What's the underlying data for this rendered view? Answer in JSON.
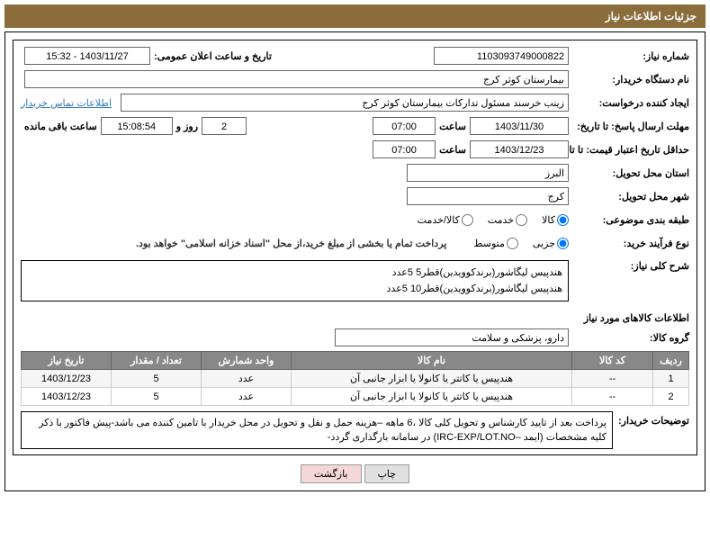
{
  "title_bar": "جزئیات اطلاعات نیاز",
  "labels": {
    "need_number": "شماره نیاز:",
    "announce_datetime": "تاریخ و ساعت اعلان عمومی:",
    "buyer_org": "نام دستگاه خریدار:",
    "requester": "ایجاد کننده درخواست:",
    "contact_link": "اطلاعات تماس خریدار",
    "reply_deadline": "مهلت ارسال پاسخ: تا تاریخ:",
    "hour": "ساعت",
    "days_and": "روز و",
    "hours_remaining": "ساعت باقی مانده",
    "price_validity": "حداقل تاریخ اعتبار قیمت: تا تاریخ:",
    "delivery_province": "استان محل تحویل:",
    "delivery_city": "شهر محل تحویل:",
    "category": "طبقه بندی موضوعی:",
    "process_type": "نوع فرآیند خرید:",
    "payment_note": "پرداخت تمام یا بخشی از مبلغ خرید،از محل \"اسناد خزانه اسلامی\" خواهد بود.",
    "general_desc": "شرح کلی نیاز:",
    "items_header": "اطلاعات کالاهای مورد نیاز",
    "group": "گروه کالا:",
    "buyer_desc": "توضیحات خریدار:",
    "print": "چاپ",
    "back": "بازگشت"
  },
  "values": {
    "need_number": "1103093749000822",
    "announce_datetime": "1403/11/27 - 15:32",
    "buyer_org": "بیمارستان کوثر کرج",
    "requester": "زینب خرسند مسئول تدارکات بیمارستان کوثر کرج",
    "reply_deadline_date": "1403/11/30",
    "reply_deadline_time": "07:00",
    "days_remaining": "2",
    "time_remaining": "15:08:54",
    "price_validity_date": "1403/12/23",
    "price_validity_time": "07:00",
    "province": "البرز",
    "city": "کرج",
    "group": "دارو، پزشکی و سلامت"
  },
  "category_options": {
    "goods": "کالا",
    "service": "خدمت",
    "goods_service": "کالا/خدمت"
  },
  "process_options": {
    "partial": "جزیی",
    "medium": "متوسط"
  },
  "general_desc_lines": [
    "هندپیس لیگاشور(برندکوویدین)قطر5  5عدد",
    "هندپیس لیگاشور(برندکوویدین)قطر10  5عدد"
  ],
  "table": {
    "headers": {
      "row": "ردیف",
      "code": "کد کالا",
      "name": "نام کالا",
      "unit": "واحد شمارش",
      "qty": "تعداد / مقدار",
      "date": "تاریخ نیاز"
    },
    "rows": [
      {
        "row": "1",
        "code": "--",
        "name": "هندپیس یا کاتتر یا کانولا یا ابزار جانبی آن",
        "unit": "عدد",
        "qty": "5",
        "date": "1403/12/23"
      },
      {
        "row": "2",
        "code": "--",
        "name": "هندپیس یا کاتتر یا کانولا یا ابزار جانبی آن",
        "unit": "عدد",
        "qty": "5",
        "date": "1403/12/23"
      }
    ]
  },
  "buyer_desc_text": "پرداخت بعد از تایید کارشناس و تحویل کلی کالا ،6 ماهه –هزینه حمل و نقل و تحویل در محل خریدار با تامین کننده می باشد-پیش فاکتور با ذکر کلیه مشخصات (ایمد –IRC-EXP/LOT.NO) در سامانه بارگذاری گردد-",
  "colors": {
    "header_bg": "#8a6d3b",
    "header_fg": "#ffffff",
    "border": "#000000",
    "th_bg": "#888888",
    "link": "#337ab7"
  }
}
